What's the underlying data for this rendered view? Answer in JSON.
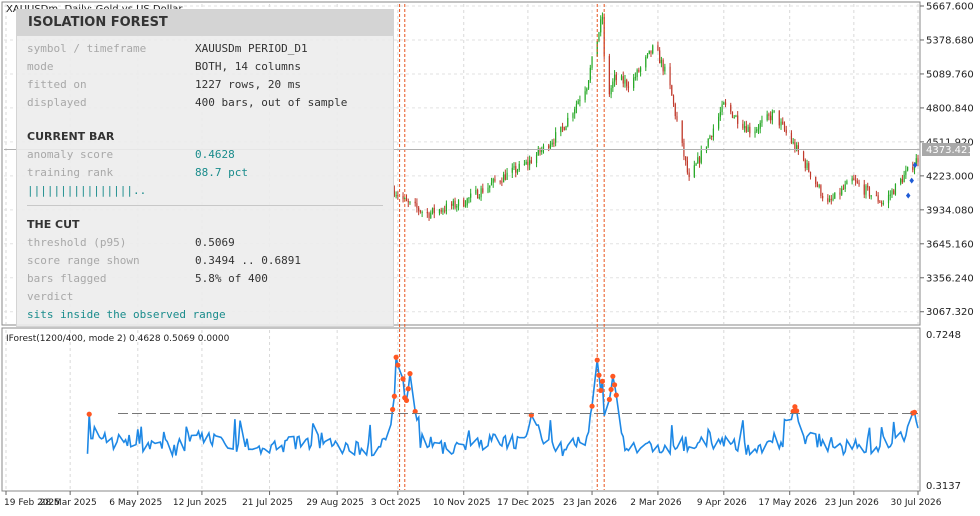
{
  "window": {
    "title": "XAUUSDm, Daily:  Gold vs US Dollar"
  },
  "panel": {
    "title": "ISOLATION FOREST",
    "rows": [
      {
        "label": "symbol / timeframe",
        "value": "XAUUSDm PERIOD_D1"
      },
      {
        "label": "mode",
        "value": "BOTH, 14 columns"
      },
      {
        "label": "fitted on",
        "value": "1227 rows, 20 ms"
      },
      {
        "label": "displayed",
        "value": "400 bars, out of sample"
      }
    ],
    "current_bar": {
      "heading": "CURRENT BAR",
      "anomaly_label": "anomaly score",
      "anomaly_value": "0.4628",
      "rank_label": "training rank",
      "rank_value": "88.7 pct",
      "rank_bar": "||||||||||||||||..",
      "rank_fraction": 0.887
    },
    "the_cut": {
      "heading": "THE CUT",
      "threshold_label": "threshold (p95)",
      "threshold_value": "0.5069",
      "range_label": "score range shown",
      "range_value": "0.3494 .. 0.6891",
      "flagged_label": "bars flagged",
      "flagged_value": "5.8% of 400",
      "verdict_label": "verdict",
      "verdict_value": "sits inside the observed range"
    }
  },
  "price_axis": [
    "5667.600",
    "5378.680",
    "5089.760",
    "4800.840",
    "4511.920",
    "4223.000",
    "3934.080",
    "3645.160",
    "3356.240",
    "3067.320"
  ],
  "current_price": "4373.421",
  "indicator": {
    "label": "IForest(1200/400, mode 2) 0.4628 0.5069 0.0000",
    "axis_top": "0.7248",
    "axis_bottom": "0.3137"
  },
  "date_axis": [
    "19 Feb 2025",
    "28 Mar 2025",
    "6 May 2025",
    "12 Jun 2025",
    "21 Jul 2025",
    "29 Aug 2025",
    "3 Oct 2025",
    "10 Nov 2025",
    "17 Dec 2025",
    "23 Jan 2026",
    "2 Mar 2026",
    "9 Apr 2026",
    "17 May 2026",
    "23 Jun 2026",
    "30 Jul 2026"
  ],
  "colors": {
    "bull": "#26a826",
    "bear": "#c0392b",
    "score_line": "#1e88e5",
    "anomaly_dot": "#ff5722",
    "marker_line": "#e8541e",
    "threshold": "#777777",
    "teal": "#1a8c8c"
  },
  "chart_data": [
    {
      "type": "candlestick",
      "title": "XAUUSDm, Daily:  Gold vs US Dollar",
      "x_range": [
        "19 Feb 2025",
        "30 Jul 2026"
      ],
      "ylim": [
        2980,
        5667.6
      ],
      "last_price": 4373.421,
      "close_path": [
        [
          "2025-10-01",
          4100
        ],
        [
          "2025-10-08",
          3990
        ],
        [
          "2025-10-20",
          3900
        ],
        [
          "2025-11-10",
          4000
        ],
        [
          "2025-12-01",
          4200
        ],
        [
          "2025-12-17",
          4330
        ],
        [
          "2026-01-05",
          4600
        ],
        [
          "2026-01-20",
          5000
        ],
        [
          "2026-01-29",
          5580
        ],
        [
          "2026-01-31",
          4850
        ],
        [
          "2026-02-05",
          5050
        ],
        [
          "2026-02-14",
          5000
        ],
        [
          "2026-02-28",
          5320
        ],
        [
          "2026-03-08",
          5040
        ],
        [
          "2026-03-20",
          4180
        ],
        [
          "2026-04-09",
          4820
        ],
        [
          "2026-04-25",
          4600
        ],
        [
          "2026-05-08",
          4750
        ],
        [
          "2026-05-25",
          4350
        ],
        [
          "2026-06-08",
          3980
        ],
        [
          "2026-06-22",
          4180
        ],
        [
          "2026-07-10",
          3990
        ],
        [
          "2026-07-30",
          4373.421
        ]
      ]
    },
    {
      "type": "line",
      "title": "IForest(1200/400, mode 2) 0.4628 0.5069 0.0000",
      "ylim": [
        0.3137,
        0.7248
      ],
      "threshold": 0.5069,
      "current": 0.4628,
      "x_range": [
        "6 Apr 2025",
        "30 Jul 2026"
      ],
      "baseline": 0.43,
      "peaks": [
        {
          "date": "2025-10-04",
          "value": 0.6891
        },
        {
          "date": "2025-10-10",
          "value": 0.61
        },
        {
          "date": "2025-12-20",
          "value": 0.52
        },
        {
          "date": "2026-01-26",
          "value": 0.65
        },
        {
          "date": "2026-02-04",
          "value": 0.61
        },
        {
          "date": "2026-05-20",
          "value": 0.53
        },
        {
          "date": "2026-07-27",
          "value": 0.52
        }
      ],
      "anomaly_markers": [
        "2025-10-04",
        "2025-10-07",
        "2026-01-26",
        "2026-01-30"
      ]
    }
  ]
}
